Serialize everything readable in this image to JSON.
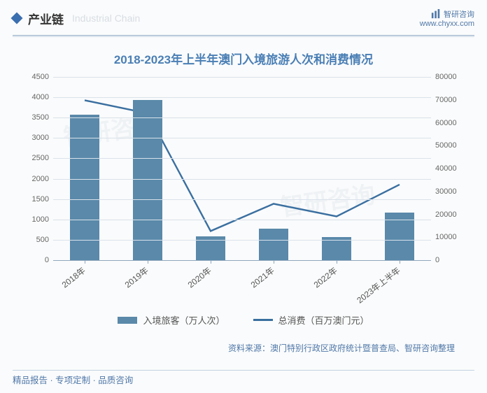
{
  "header": {
    "section_title": "产业链",
    "section_title_en": "Industrial Chain",
    "brand_name": "智研咨询",
    "brand_url": "www.chyxx.com"
  },
  "chart": {
    "type": "bar+line",
    "title": "2018-2023年上半年澳门入境旅游人次和消费情况",
    "categories": [
      "2018年",
      "2019年",
      "2020年",
      "2021年",
      "2022年",
      "2023年上半年"
    ],
    "bar_series": {
      "label": "入境旅客（万人次）",
      "values": [
        3580,
        3940,
        590,
        770,
        570,
        1170
      ],
      "color": "#5a89aa"
    },
    "line_series": {
      "label": "总消费（百万澳门元）",
      "values": [
        69800,
        64100,
        12700,
        24600,
        19100,
        33000
      ],
      "color": "#3a6fa0",
      "line_width": 2.4
    },
    "y_left": {
      "min": 0,
      "max": 4500,
      "step": 500
    },
    "y_right": {
      "min": 0,
      "max": 80000,
      "step": 10000
    },
    "background_color": "#fafbfc",
    "grid_color": "#d9e2ea",
    "axis_color": "#8ea6bd",
    "label_fontsize": 11,
    "title_fontsize": 17,
    "title_color": "#4a7fb5",
    "bar_width_ratio": 0.46
  },
  "source": "资料来源：澳门特别行政区政府统计暨普查局、智研咨询整理",
  "footer": "精品报告 · 专项定制 · 品质咨询",
  "watermark": "智研咨询"
}
